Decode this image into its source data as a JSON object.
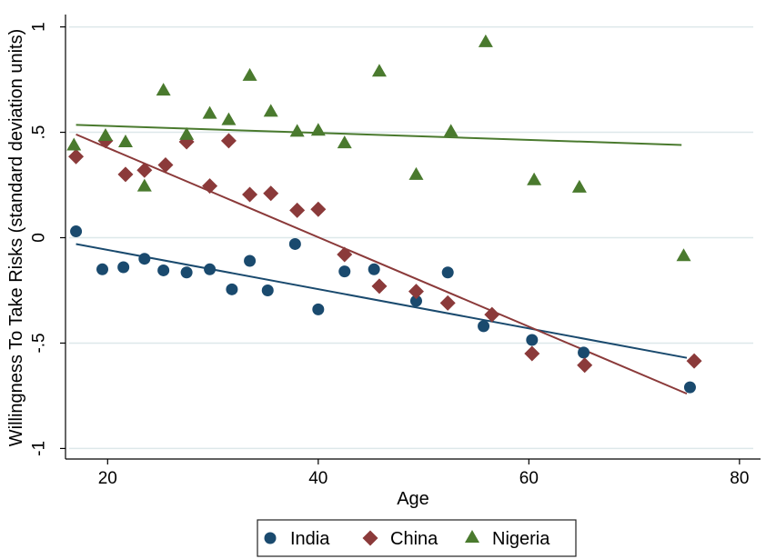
{
  "chart_data": {
    "type": "scatter",
    "xlabel": "Age",
    "ylabel": "Willingness To Take Risks (standard deviation units)",
    "xlim": [
      16,
      82
    ],
    "ylim": [
      -1.05,
      1.05
    ],
    "x_ticks": [
      20,
      40,
      60,
      80
    ],
    "x_tick_labels": [
      "20",
      "40",
      "60",
      "80"
    ],
    "y_ticks": [
      1,
      0.5,
      0,
      -0.5,
      -1
    ],
    "y_tick_labels": [
      "1",
      ".5",
      "0",
      "-.5",
      "-1"
    ],
    "grid": "horizontal",
    "legend_position": "bottom",
    "series": [
      {
        "name": "India",
        "marker": "circle",
        "color": "#1a4a6e",
        "x": [
          17,
          19.5,
          21.5,
          23.5,
          25.3,
          27.5,
          29.7,
          31.8,
          33.5,
          35.2,
          37.8,
          40,
          42.5,
          45.3,
          49.3,
          52.3,
          55.7,
          60.3,
          65.2,
          75.3
        ],
        "y": [
          0.03,
          -0.15,
          -0.14,
          -0.1,
          -0.155,
          -0.165,
          -0.15,
          -0.245,
          -0.11,
          -0.25,
          -0.03,
          -0.34,
          -0.16,
          -0.15,
          -0.3,
          -0.165,
          -0.42,
          -0.485,
          -0.545,
          -0.71
        ],
        "fit": {
          "x": [
            17,
            75
          ],
          "y": [
            -0.03,
            -0.57
          ]
        }
      },
      {
        "name": "China",
        "marker": "diamond",
        "color": "#8b3a3a",
        "x": [
          17,
          19.8,
          21.7,
          23.5,
          25.5,
          27.5,
          29.7,
          31.5,
          33.5,
          35.5,
          38,
          40,
          42.5,
          45.8,
          49.3,
          52.3,
          56.5,
          60.3,
          65.3,
          75.7
        ],
        "y": [
          0.385,
          0.46,
          0.3,
          0.32,
          0.345,
          0.455,
          0.245,
          0.46,
          0.205,
          0.21,
          0.13,
          0.135,
          -0.08,
          -0.23,
          -0.255,
          -0.31,
          -0.365,
          -0.55,
          -0.605,
          -0.585
        ],
        "fit": {
          "x": [
            17,
            75
          ],
          "y": [
            0.49,
            -0.74
          ]
        }
      },
      {
        "name": "Nigeria",
        "marker": "triangle",
        "color": "#4a7a2e",
        "x": [
          16.8,
          19.8,
          21.7,
          23.5,
          25.3,
          27.5,
          29.7,
          31.5,
          33.5,
          35.5,
          38,
          40,
          42.5,
          45.8,
          49.3,
          52.6,
          55.9,
          60.5,
          64.8,
          74.7
        ],
        "y": [
          0.44,
          0.485,
          0.455,
          0.245,
          0.7,
          0.49,
          0.59,
          0.56,
          0.77,
          0.6,
          0.505,
          0.51,
          0.45,
          0.79,
          0.3,
          0.505,
          0.93,
          0.275,
          0.24,
          -0.085
        ],
        "fit": {
          "x": [
            17,
            74.5
          ],
          "y": [
            0.535,
            0.44
          ]
        }
      }
    ]
  },
  "style": {
    "grid_color": "#dde8ea",
    "axis_color": "#000000",
    "legend_border": "#222222"
  }
}
